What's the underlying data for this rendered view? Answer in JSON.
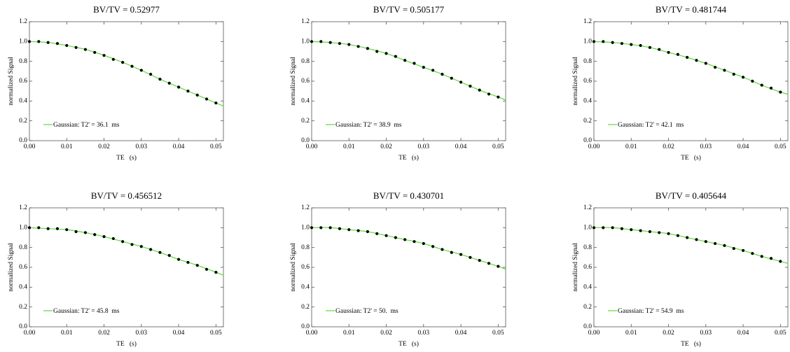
{
  "chart_data": [
    {
      "type": "scatter",
      "title": "BV/TV = 0.52977",
      "xlabel": "TE   (s)",
      "ylabel": "normalized Signal",
      "x": [
        0,
        0.0025,
        0.005,
        0.0075,
        0.01,
        0.0125,
        0.015,
        0.0175,
        0.02,
        0.0225,
        0.025,
        0.0275,
        0.03,
        0.0325,
        0.035,
        0.0375,
        0.04,
        0.0425,
        0.045,
        0.0475,
        0.05
      ],
      "series": [
        {
          "color": "#000000",
          "values": [
            1,
            1,
            0.99,
            0.98,
            0.96,
            0.94,
            0.92,
            0.89,
            0.86,
            0.82,
            0.79,
            0.75,
            0.71,
            0.67,
            0.62,
            0.58,
            0.54,
            0.5,
            0.46,
            0.42,
            0.38
          ]
        },
        {
          "name": "Gaussian: T2' = 36.1  ms",
          "color": "#66dd44",
          "type": "line",
          "x": [
            0,
            0.005,
            0.01,
            0.015,
            0.02,
            0.025,
            0.03,
            0.035,
            0.04,
            0.045,
            0.05,
            0.052
          ],
          "values": [
            1,
            0.99,
            0.96,
            0.92,
            0.86,
            0.79,
            0.71,
            0.62,
            0.54,
            0.46,
            0.38,
            0.35
          ]
        }
      ],
      "xlim": [
        0,
        0.052
      ],
      "ylim": [
        0,
        1.2
      ],
      "xticks": [
        {
          "value": 0,
          "label": "0.00"
        },
        0.01,
        0.02,
        0.03,
        0.04,
        0.05
      ],
      "yticks": [
        {
          "value": 0,
          "label": "0.0"
        },
        0.2,
        0.4,
        0.6,
        0.8,
        {
          "value": 1,
          "label": "1.0"
        },
        1.2
      ],
      "legend": "lower left"
    },
    {
      "type": "scatter",
      "title": "BV/TV = 0.505177",
      "xlabel": "TE   (s)",
      "ylabel": "normalized Signal",
      "x": [
        0,
        0.0025,
        0.005,
        0.0075,
        0.01,
        0.0125,
        0.015,
        0.0175,
        0.02,
        0.0225,
        0.025,
        0.0275,
        0.03,
        0.0325,
        0.035,
        0.0375,
        0.04,
        0.0425,
        0.045,
        0.0475,
        0.05
      ],
      "series": [
        {
          "color": "#000000",
          "values": [
            1,
            1,
            0.99,
            0.98,
            0.97,
            0.95,
            0.93,
            0.9,
            0.88,
            0.85,
            0.81,
            0.78,
            0.74,
            0.71,
            0.67,
            0.63,
            0.59,
            0.55,
            0.51,
            0.47,
            0.44
          ]
        },
        {
          "name": "Gaussian: T2' = 38.9  ms",
          "color": "#66dd44",
          "type": "line",
          "x": [
            0,
            0.005,
            0.01,
            0.015,
            0.02,
            0.025,
            0.03,
            0.035,
            0.04,
            0.045,
            0.05,
            0.052
          ],
          "values": [
            1,
            0.99,
            0.97,
            0.93,
            0.88,
            0.81,
            0.74,
            0.67,
            0.59,
            0.51,
            0.44,
            0.41
          ]
        }
      ],
      "xlim": [
        0,
        0.052
      ],
      "ylim": [
        0,
        1.2
      ],
      "xticks": [
        {
          "value": 0,
          "label": "0.00"
        },
        0.01,
        0.02,
        0.03,
        0.04,
        0.05
      ],
      "yticks": [
        {
          "value": 0,
          "label": "0.0"
        },
        0.2,
        0.4,
        0.6,
        0.8,
        {
          "value": 1,
          "label": "1.0"
        },
        1.2
      ],
      "legend": "lower left"
    },
    {
      "type": "scatter",
      "title": "BV/TV = 0.481744",
      "xlabel": "TE   (s)",
      "ylabel": "normalized Signal",
      "x": [
        0,
        0.0025,
        0.005,
        0.0075,
        0.01,
        0.0125,
        0.015,
        0.0175,
        0.02,
        0.0225,
        0.025,
        0.0275,
        0.03,
        0.0325,
        0.035,
        0.0375,
        0.04,
        0.0425,
        0.045,
        0.0475,
        0.05
      ],
      "series": [
        {
          "color": "#000000",
          "values": [
            1,
            1,
            0.99,
            0.98,
            0.97,
            0.96,
            0.94,
            0.92,
            0.89,
            0.87,
            0.84,
            0.81,
            0.78,
            0.74,
            0.71,
            0.67,
            0.64,
            0.6,
            0.56,
            0.53,
            0.49
          ]
        },
        {
          "name": "Gaussian: T2' = 42.1  ms",
          "color": "#66dd44",
          "type": "line",
          "x": [
            0,
            0.005,
            0.01,
            0.015,
            0.02,
            0.025,
            0.03,
            0.035,
            0.04,
            0.045,
            0.05,
            0.052
          ],
          "values": [
            1,
            0.99,
            0.97,
            0.94,
            0.89,
            0.84,
            0.78,
            0.71,
            0.64,
            0.56,
            0.49,
            0.47
          ]
        }
      ],
      "xlim": [
        0,
        0.052
      ],
      "ylim": [
        0,
        1.2
      ],
      "xticks": [
        {
          "value": 0,
          "label": "0.00"
        },
        0.01,
        0.02,
        0.03,
        0.04,
        0.05
      ],
      "yticks": [
        {
          "value": 0,
          "label": "0.0"
        },
        0.2,
        0.4,
        0.6,
        0.8,
        {
          "value": 1,
          "label": "1.0"
        },
        1.2
      ],
      "legend": "lower left"
    },
    {
      "type": "scatter",
      "title": "BV/TV = 0.456512",
      "xlabel": "TE   (s)",
      "ylabel": "normalized Signal",
      "x": [
        0,
        0.0025,
        0.005,
        0.0075,
        0.01,
        0.0125,
        0.015,
        0.0175,
        0.02,
        0.0225,
        0.025,
        0.0275,
        0.03,
        0.0325,
        0.035,
        0.0375,
        0.04,
        0.0425,
        0.045,
        0.0475,
        0.05
      ],
      "series": [
        {
          "color": "#000000",
          "values": [
            1,
            1,
            0.99,
            0.99,
            0.98,
            0.96,
            0.95,
            0.93,
            0.91,
            0.89,
            0.86,
            0.83,
            0.81,
            0.78,
            0.75,
            0.72,
            0.68,
            0.65,
            0.62,
            0.58,
            0.55
          ]
        },
        {
          "name": "Gaussian: T2' = 45.8  ms",
          "color": "#66dd44",
          "type": "line",
          "x": [
            0,
            0.005,
            0.01,
            0.015,
            0.02,
            0.025,
            0.03,
            0.035,
            0.04,
            0.045,
            0.05,
            0.052
          ],
          "values": [
            1,
            0.99,
            0.98,
            0.95,
            0.91,
            0.86,
            0.81,
            0.75,
            0.68,
            0.62,
            0.55,
            0.52
          ]
        }
      ],
      "xlim": [
        0,
        0.052
      ],
      "ylim": [
        0,
        1.2
      ],
      "xticks": [
        {
          "value": 0,
          "label": "0.00"
        },
        0.01,
        0.02,
        0.03,
        0.04,
        0.05
      ],
      "yticks": [
        {
          "value": 0,
          "label": "0.0"
        },
        0.2,
        0.4,
        0.6,
        0.8,
        {
          "value": 1,
          "label": "1.0"
        },
        1.2
      ],
      "legend": "lower left"
    },
    {
      "type": "scatter",
      "title": "BV/TV = 0.430701",
      "xlabel": "TE   (s)",
      "ylabel": "normalized Signal",
      "x": [
        0,
        0.0025,
        0.005,
        0.0075,
        0.01,
        0.0125,
        0.015,
        0.0175,
        0.02,
        0.0225,
        0.025,
        0.0275,
        0.03,
        0.0325,
        0.035,
        0.0375,
        0.04,
        0.0425,
        0.045,
        0.0475,
        0.05
      ],
      "series": [
        {
          "color": "#000000",
          "values": [
            1,
            1,
            1,
            0.99,
            0.98,
            0.97,
            0.96,
            0.94,
            0.92,
            0.9,
            0.88,
            0.86,
            0.84,
            0.81,
            0.78,
            0.75,
            0.73,
            0.7,
            0.67,
            0.64,
            0.61
          ]
        },
        {
          "name": "Gaussian: T2' = 50.  ms",
          "color": "#66dd44",
          "type": "line",
          "x": [
            0,
            0.005,
            0.01,
            0.015,
            0.02,
            0.025,
            0.03,
            0.035,
            0.04,
            0.045,
            0.05,
            0.052
          ],
          "values": [
            1,
            1,
            0.98,
            0.96,
            0.92,
            0.88,
            0.84,
            0.78,
            0.73,
            0.67,
            0.61,
            0.58
          ]
        }
      ],
      "xlim": [
        0,
        0.052
      ],
      "ylim": [
        0,
        1.2
      ],
      "xticks": [
        {
          "value": 0,
          "label": "0.00"
        },
        0.01,
        0.02,
        0.03,
        0.04,
        0.05
      ],
      "yticks": [
        {
          "value": 0,
          "label": "0.0"
        },
        0.2,
        0.4,
        0.6,
        0.8,
        {
          "value": 1,
          "label": "1.0"
        },
        1.2
      ],
      "legend": "lower left"
    },
    {
      "type": "scatter",
      "title": "BV/TV = 0.405644",
      "xlabel": "TE   (s)",
      "ylabel": "normalized Signal",
      "x": [
        0,
        0.0025,
        0.005,
        0.0075,
        0.01,
        0.0125,
        0.015,
        0.0175,
        0.02,
        0.0225,
        0.025,
        0.0275,
        0.03,
        0.0325,
        0.035,
        0.0375,
        0.04,
        0.0425,
        0.045,
        0.0475,
        0.05
      ],
      "series": [
        {
          "color": "#000000",
          "values": [
            1,
            1,
            1,
            0.99,
            0.98,
            0.97,
            0.96,
            0.95,
            0.94,
            0.92,
            0.9,
            0.88,
            0.86,
            0.84,
            0.82,
            0.79,
            0.77,
            0.74,
            0.71,
            0.69,
            0.66
          ]
        },
        {
          "name": "Gaussian: T2' = 54.9  ms",
          "color": "#66dd44",
          "type": "line",
          "x": [
            0,
            0.005,
            0.01,
            0.015,
            0.02,
            0.025,
            0.03,
            0.035,
            0.04,
            0.045,
            0.05,
            0.052
          ],
          "values": [
            1,
            1,
            0.98,
            0.96,
            0.94,
            0.9,
            0.86,
            0.82,
            0.77,
            0.71,
            0.66,
            0.64
          ]
        }
      ],
      "xlim": [
        0,
        0.052
      ],
      "ylim": [
        0,
        1.2
      ],
      "xticks": [
        {
          "value": 0,
          "label": "0.00"
        },
        0.01,
        0.02,
        0.03,
        0.04,
        0.05
      ],
      "yticks": [
        {
          "value": 0,
          "label": "0.0"
        },
        0.2,
        0.4,
        0.6,
        0.8,
        {
          "value": 1,
          "label": "1.0"
        },
        1.2
      ],
      "legend": "lower left"
    }
  ]
}
